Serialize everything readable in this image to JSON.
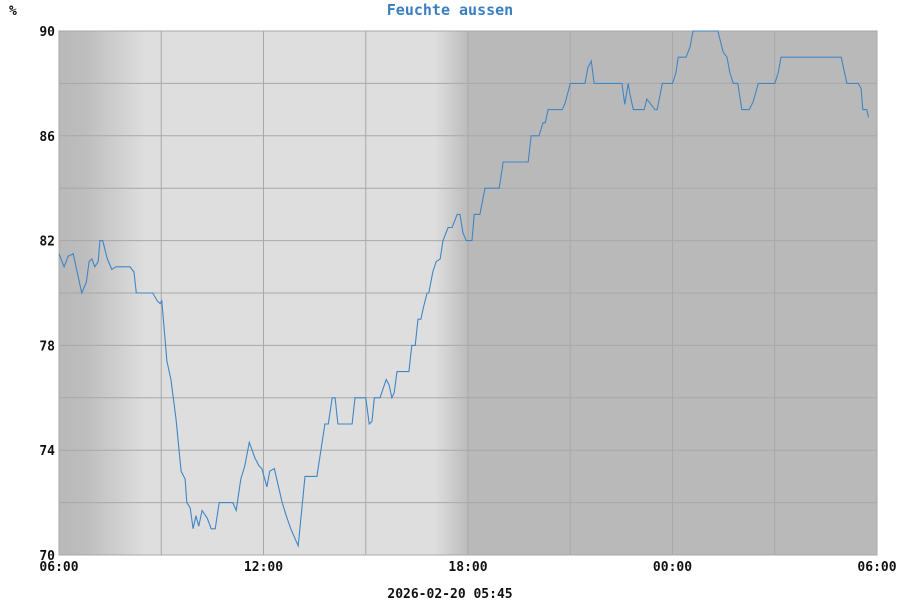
{
  "chart_data": {
    "type": "line",
    "title": "Feuchte aussen",
    "ylabel": "%",
    "xlabel": "",
    "footer": "2026-02-20 05:45",
    "xlim": [
      "06:00",
      "06:00"
    ],
    "ylim": [
      70,
      90
    ],
    "y_ticks": [
      "70",
      "74",
      "78",
      "82",
      "86",
      "90"
    ],
    "y_grid_step": 2,
    "x_ticks": [
      "06:00",
      "12:00",
      "18:00",
      "00:00",
      "06:00"
    ],
    "x_grid_step_hours": 3,
    "grid": true,
    "colors": {
      "line": "#3f86c6",
      "title": "#3a7fc0",
      "day": "#dedede",
      "night": "#b9b9b9",
      "grid": "#a8a8a8"
    },
    "series": [
      {
        "points": [
          [
            "06:00",
            81.5
          ],
          [
            "06:09",
            81.0
          ],
          [
            "06:16",
            81.4
          ],
          [
            "06:25",
            81.5
          ],
          [
            "06:40",
            80.0
          ],
          [
            "06:48",
            80.4
          ],
          [
            "06:53",
            81.2
          ],
          [
            "06:58",
            81.3
          ],
          [
            "07:03",
            81.0
          ],
          [
            "07:09",
            81.2
          ],
          [
            "07:12",
            82.0
          ],
          [
            "07:17",
            82.0
          ],
          [
            "07:25",
            81.3
          ],
          [
            "07:33",
            80.9
          ],
          [
            "07:40",
            81.0
          ],
          [
            "08:05",
            81.0
          ],
          [
            "08:12",
            80.8
          ],
          [
            "08:16",
            80.0
          ],
          [
            "08:45",
            80.0
          ],
          [
            "08:53",
            79.7
          ],
          [
            "08:58",
            79.6
          ],
          [
            "09:01",
            79.7
          ],
          [
            "09:10",
            77.4
          ],
          [
            "09:17",
            76.7
          ],
          [
            "09:26",
            75.2
          ],
          [
            "09:35",
            73.2
          ],
          [
            "09:42",
            72.9
          ],
          [
            "09:45",
            72.0
          ],
          [
            "09:51",
            71.8
          ],
          [
            "09:56",
            71.0
          ],
          [
            "10:01",
            71.5
          ],
          [
            "10:06",
            71.1
          ],
          [
            "10:12",
            71.7
          ],
          [
            "10:21",
            71.4
          ],
          [
            "10:28",
            71.0
          ],
          [
            "10:35",
            71.0
          ],
          [
            "10:42",
            72.0
          ],
          [
            "11:06",
            72.0
          ],
          [
            "11:12",
            71.7
          ],
          [
            "11:20",
            72.9
          ],
          [
            "11:27",
            73.4
          ],
          [
            "11:35",
            74.3
          ],
          [
            "11:45",
            73.7
          ],
          [
            "11:52",
            73.4
          ],
          [
            "11:57",
            73.3
          ],
          [
            "12:06",
            72.6
          ],
          [
            "12:11",
            73.2
          ],
          [
            "12:19",
            73.3
          ],
          [
            "12:33",
            72.0
          ],
          [
            "12:40",
            71.5
          ],
          [
            "12:48",
            71.0
          ],
          [
            "13:01",
            70.35
          ],
          [
            "13:13",
            73.0
          ],
          [
            "13:34",
            73.0
          ],
          [
            "13:41",
            74.0
          ],
          [
            "13:48",
            75.0
          ],
          [
            "13:54",
            75.0
          ],
          [
            "14:01",
            76.0
          ],
          [
            "14:06",
            76.0
          ],
          [
            "14:11",
            75.0
          ],
          [
            "14:36",
            75.0
          ],
          [
            "14:41",
            76.0
          ],
          [
            "15:00",
            76.0
          ],
          [
            "15:06",
            75.0
          ],
          [
            "15:11",
            75.1
          ],
          [
            "15:15",
            76.0
          ],
          [
            "15:25",
            76.0
          ],
          [
            "15:36",
            76.7
          ],
          [
            "15:41",
            76.5
          ],
          [
            "15:46",
            76.0
          ],
          [
            "15:50",
            76.2
          ],
          [
            "15:55",
            77.0
          ],
          [
            "16:16",
            77.0
          ],
          [
            "16:21",
            78.0
          ],
          [
            "16:27",
            78.0
          ],
          [
            "16:32",
            79.0
          ],
          [
            "16:37",
            79.0
          ],
          [
            "16:41",
            79.4
          ],
          [
            "16:48",
            80.0
          ],
          [
            "16:51",
            80.0
          ],
          [
            "16:58",
            80.8
          ],
          [
            "17:04",
            81.2
          ],
          [
            "17:11",
            81.3
          ],
          [
            "17:16",
            82.0
          ],
          [
            "17:25",
            82.5
          ],
          [
            "17:32",
            82.5
          ],
          [
            "17:41",
            83.0
          ],
          [
            "17:46",
            83.0
          ],
          [
            "17:51",
            82.3
          ],
          [
            "17:57",
            82.0
          ],
          [
            "18:07",
            82.0
          ],
          [
            "18:11",
            83.0
          ],
          [
            "18:21",
            83.0
          ],
          [
            "18:30",
            84.0
          ],
          [
            "18:55",
            84.0
          ],
          [
            "19:02",
            85.0
          ],
          [
            "19:46",
            85.0
          ],
          [
            "19:51",
            86.0
          ],
          [
            "20:05",
            86.0
          ],
          [
            "20:12",
            86.5
          ],
          [
            "20:16",
            86.5
          ],
          [
            "20:21",
            87.0
          ],
          [
            "20:46",
            87.0
          ],
          [
            "20:51",
            87.25
          ],
          [
            "21:00",
            88.0
          ],
          [
            "21:26",
            88.0
          ],
          [
            "21:31",
            88.6
          ],
          [
            "21:37",
            88.85
          ],
          [
            "21:42",
            88.0
          ],
          [
            "22:31",
            88.0
          ],
          [
            "22:36",
            87.2
          ],
          [
            "22:42",
            88.0
          ],
          [
            "22:45",
            87.6
          ],
          [
            "22:51",
            87.0
          ],
          [
            "23:10",
            87.0
          ],
          [
            "23:15",
            87.4
          ],
          [
            "23:29",
            87.0
          ],
          [
            "23:33",
            87.0
          ],
          [
            "23:42",
            88.0
          ],
          [
            "00:00",
            88.0
          ],
          [
            "00:06",
            88.4
          ],
          [
            "00:10",
            89.0
          ],
          [
            "00:24",
            89.0
          ],
          [
            "00:31",
            89.4
          ],
          [
            "00:36",
            90.0
          ],
          [
            "01:20",
            90.0
          ],
          [
            "01:29",
            89.2
          ],
          [
            "01:36",
            89.0
          ],
          [
            "01:41",
            88.4
          ],
          [
            "01:47",
            88.0
          ],
          [
            "01:55",
            88.0
          ],
          [
            "02:02",
            87.0
          ],
          [
            "02:15",
            87.0
          ],
          [
            "02:22",
            87.3
          ],
          [
            "02:31",
            88.0
          ],
          [
            "03:00",
            88.0
          ],
          [
            "03:06",
            88.4
          ],
          [
            "03:11",
            89.0
          ],
          [
            "04:57",
            89.0
          ],
          [
            "05:07",
            88.0
          ],
          [
            "05:27",
            88.0
          ],
          [
            "05:32",
            87.8
          ],
          [
            "05:35",
            87.0
          ],
          [
            "05:42",
            87.0
          ],
          [
            "05:45",
            86.7
          ]
        ]
      }
    ]
  }
}
